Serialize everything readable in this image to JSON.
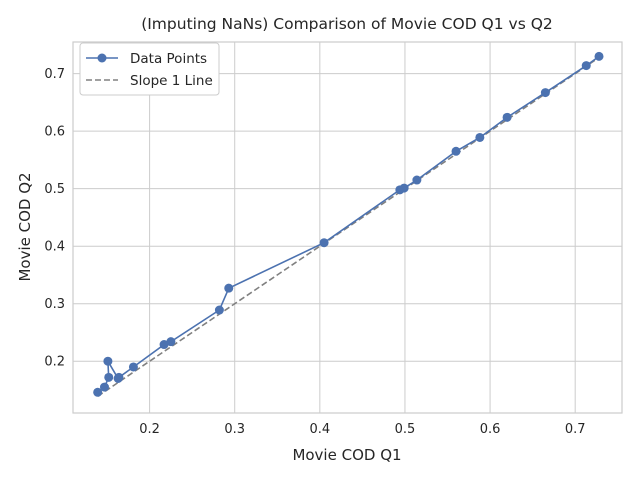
{
  "chart_data": {
    "type": "line",
    "title": "(Imputing NaNs) Comparison of Movie COD Q1 vs Q2",
    "xlabel": "Movie COD Q1",
    "ylabel": "Movie COD Q2",
    "xlim": [
      0.11,
      0.755
    ],
    "ylim": [
      0.11,
      0.755
    ],
    "xticks": [
      0.2,
      0.3,
      0.4,
      0.5,
      0.6,
      0.7
    ],
    "yticks": [
      0.2,
      0.3,
      0.4,
      0.5,
      0.6,
      0.7
    ],
    "grid": true,
    "legend_position": "top-left",
    "series": [
      {
        "name": "Data Points",
        "style": "line-with-markers",
        "color": "#4c72b0",
        "x": [
          0.139,
          0.147,
          0.152,
          0.151,
          0.163,
          0.164,
          0.181,
          0.217,
          0.225,
          0.282,
          0.293,
          0.405,
          0.494,
          0.499,
          0.514,
          0.56,
          0.588,
          0.62,
          0.665,
          0.713,
          0.728
        ],
        "y": [
          0.146,
          0.155,
          0.172,
          0.2,
          0.17,
          0.172,
          0.19,
          0.229,
          0.234,
          0.289,
          0.327,
          0.406,
          0.498,
          0.501,
          0.515,
          0.565,
          0.589,
          0.624,
          0.667,
          0.714,
          0.73
        ]
      },
      {
        "name": "Slope 1 Line",
        "style": "dashed",
        "color": "#808080",
        "x": [
          0.139,
          0.728
        ],
        "y": [
          0.139,
          0.728
        ]
      }
    ]
  }
}
